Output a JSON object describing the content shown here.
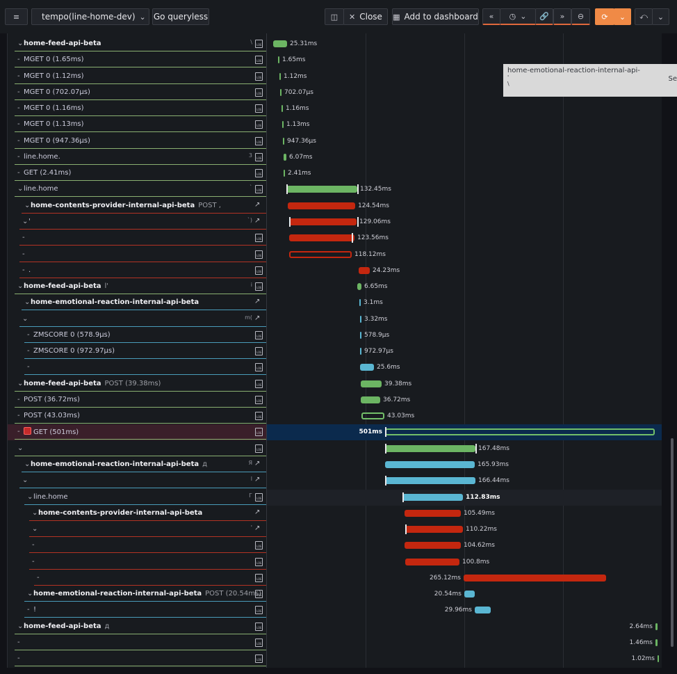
{
  "toolbar": {
    "menu_icon": "hamburger-icon",
    "datasource_label": "tempo(line-home-dev)",
    "go_queryless": "Go queryless",
    "close_label": "Close",
    "add_to_dashboard": "Add to dashboard"
  },
  "colors": {
    "green": "#6cb563",
    "red": "#c4270f",
    "blue": "#5ab6d2",
    "accent_orange": "#f08a46",
    "selected_row": "#0b2a4d"
  },
  "tooltip": {
    "line1": "home-emotional-reaction-internal-api-",
    "line2": "'",
    "line3": "\\",
    "side": "Se"
  },
  "spans": [
    {
      "name": "home-feed-api-beta",
      "bold": true,
      "depth": 0,
      "dur": "25.31ms",
      "tiny": "\\",
      "action": "logs",
      "color": "green",
      "progress": 0.0
    },
    {
      "name": "MGET 0 (1.65ms)",
      "depth": 0,
      "dur": "1.65ms",
      "action": "logs",
      "color": "green"
    },
    {
      "name": "MGET 0 (1.12ms)",
      "depth": 0,
      "dur": "1.12ms",
      "action": "logs",
      "color": "green"
    },
    {
      "name": "MGET 0 (702.07μs)",
      "depth": 0,
      "dur": "702.07μs",
      "action": "logs",
      "color": "green"
    },
    {
      "name": "MGET 0 (1.16ms)",
      "depth": 0,
      "dur": "1.16ms",
      "action": "logs",
      "color": "green"
    },
    {
      "name": "MGET 0 (1.13ms)",
      "depth": 0,
      "dur": "1.13ms",
      "action": "logs",
      "color": "green"
    },
    {
      "name": "MGET 0 (947.36μs)",
      "depth": 0,
      "dur": "947.36μs",
      "action": "logs",
      "color": "green"
    },
    {
      "name": "line.home.",
      "depth": 0,
      "dur": "6.07ms",
      "tiny": "3",
      "action": "logs",
      "color": "green"
    },
    {
      "name": "GET (2.41ms)",
      "depth": 0,
      "dur": "2.41ms",
      "action": "logs",
      "color": "green"
    },
    {
      "name": "line.home",
      "depth": 0,
      "dur": "132.45ms",
      "tiny": "`",
      "action": "logs",
      "color": "green"
    },
    {
      "name": "home-contents-provider-internal-api-beta",
      "extra": "POST ,",
      "bold": true,
      "depth": 1,
      "dur": "124.54ms",
      "action": "link",
      "color": "red"
    },
    {
      "name": "'",
      "depth": 1,
      "dur": "129.06ms",
      "tiny": "`)",
      "action": "link",
      "color": "red"
    },
    {
      "name": "",
      "depth": 1,
      "dur": "123.56ms",
      "action": "logs",
      "color": "red"
    },
    {
      "name": "",
      "depth": 1,
      "dur": "118.12ms",
      "action": "logs",
      "color": "red"
    },
    {
      "name": ".",
      "depth": 1,
      "dur": "24.23ms",
      "action": "logs",
      "color": "red"
    },
    {
      "name": "home-feed-api-beta",
      "extra": "l'",
      "bold": true,
      "depth": 0,
      "dur": "6.65ms",
      "tiny": "i",
      "action": "logs",
      "color": "green"
    },
    {
      "name": "home-emotional-reaction-internal-api-beta",
      "bold": true,
      "depth": 1,
      "dur": "3.1ms",
      "action": "link",
      "color": "blue"
    },
    {
      "name": "",
      "depth": 1,
      "dur": "3.32ms",
      "tiny": "m(",
      "action": "link",
      "color": "blue"
    },
    {
      "name": "ZMSCORE 0 (578.9μs)",
      "depth": 2,
      "dur": "578.9μs",
      "action": "logs",
      "color": "blue"
    },
    {
      "name": "ZMSCORE 0 (972.97μs)",
      "depth": 2,
      "dur": "972.97μs",
      "action": "logs",
      "color": "blue"
    },
    {
      "name": "",
      "depth": 2,
      "dur": "25.6ms",
      "action": "logs",
      "color": "blue"
    },
    {
      "name": "home-feed-api-beta",
      "extra": "POST (39.38ms)",
      "bold": true,
      "depth": 0,
      "dur": "39.38ms",
      "action": "logs",
      "color": "green"
    },
    {
      "name": "POST (36.72ms)",
      "depth": 0,
      "dur": "36.72ms",
      "action": "logs",
      "color": "green"
    },
    {
      "name": "POST (43.03ms)",
      "depth": 0,
      "dur": "43.03ms",
      "action": "logs",
      "color": "green"
    },
    {
      "name": "GET (501ms)",
      "depth": 0,
      "dur": "501ms",
      "error": true,
      "action": "logs",
      "color": "green"
    },
    {
      "name": "",
      "depth": 0,
      "dur": "167.48ms",
      "action": "logs",
      "color": "green"
    },
    {
      "name": "home-emotional-reaction-internal-api-beta",
      "extra": "д",
      "bold": true,
      "depth": 1,
      "dur": "165.93ms",
      "tiny": "Я",
      "action": "link",
      "color": "blue"
    },
    {
      "name": "",
      "depth": 1,
      "dur": "166.44ms",
      "tiny": "l",
      "action": "link",
      "color": "blue"
    },
    {
      "name": "line.home",
      "depth": 2,
      "dur": "112.83ms",
      "tiny": "Г",
      "action": "logs",
      "color": "blue"
    },
    {
      "name": "home-contents-provider-internal-api-beta",
      "bold": true,
      "depth": 3,
      "dur": "105.49ms",
      "action": "link",
      "color": "red"
    },
    {
      "name": "",
      "depth": 3,
      "dur": "110.22ms",
      "tiny": "'",
      "action": "link",
      "color": "red"
    },
    {
      "name": "",
      "depth": 3,
      "dur": "104.62ms",
      "action": "logs",
      "color": "red"
    },
    {
      "name": "",
      "depth": 3,
      "dur": "100.8ms",
      "action": "logs",
      "color": "red"
    },
    {
      "name": "",
      "depth": 4,
      "dur": "265.12ms",
      "action": "logs",
      "color": "red"
    },
    {
      "name": "home-emotional-reaction-internal-api-beta",
      "extra": "POST (20.54ms)",
      "bold": true,
      "depth": 2,
      "dur": "20.54ms",
      "action": "logs",
      "color": "blue"
    },
    {
      "name": "!",
      "depth": 2,
      "dur": "29.96ms",
      "action": "logs",
      "color": "blue"
    },
    {
      "name": "home-feed-api-beta",
      "extra": "д",
      "bold": true,
      "depth": 0,
      "dur": "2.64ms",
      "action": "logs",
      "color": "green"
    },
    {
      "name": "",
      "depth": 0,
      "dur": "1.46ms",
      "action": "logs",
      "color": "green"
    },
    {
      "name": "",
      "depth": 0,
      "dur": "1.02ms",
      "action": "logs",
      "color": "green"
    }
  ]
}
